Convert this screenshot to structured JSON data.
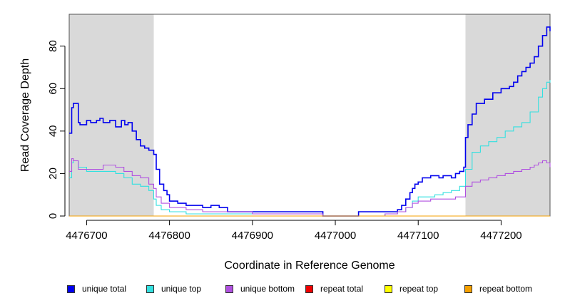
{
  "chart_data": {
    "type": "line",
    "title": "",
    "xlabel": "Coordinate in Reference Genome",
    "ylabel": "Read Coverage Depth",
    "xlim": [
      4476679,
      4477259
    ],
    "ylim": [
      0,
      95
    ],
    "x_ticks": [
      4476700,
      4476800,
      4476900,
      4477000,
      4477100,
      4477200
    ],
    "x_tick_labels": [
      "4476700",
      "4476800",
      "4476900",
      "4477000",
      "4477100",
      "4477200"
    ],
    "y_ticks": [
      0,
      20,
      40,
      60,
      80
    ],
    "y_tick_labels": [
      "0",
      "20",
      "40",
      "60",
      "80"
    ],
    "shaded_regions": [
      [
        4476679,
        4476781
      ],
      [
        4477157,
        4477259
      ]
    ],
    "grid": false,
    "legend_position": "bottom",
    "series": [
      {
        "name": "unique total",
        "color": "#0000ee",
        "x": [
          4476679,
          4476682,
          4476684,
          4476690,
          4476692,
          4476700,
          4476705,
          4476712,
          4476716,
          4476720,
          4476728,
          4476735,
          4476742,
          4476746,
          4476750,
          4476755,
          4476760,
          4476765,
          4476770,
          4476775,
          4476781,
          4476784,
          4476788,
          4476793,
          4476797,
          4476800,
          4476810,
          4476820,
          4476830,
          4476840,
          4476850,
          4476860,
          4476870,
          4476880,
          4476900,
          4476940,
          4476980,
          4476985,
          4477010,
          4477028,
          4477040,
          4477060,
          4477075,
          4477080,
          4477085,
          4477090,
          4477093,
          4477096,
          4477100,
          4477105,
          4477115,
          4477125,
          4477130,
          4477140,
          4477145,
          4477150,
          4477155,
          4477157,
          4477160,
          4477165,
          4477170,
          4477180,
          4477190,
          4477200,
          4477210,
          4477215,
          4477220,
          4477225,
          4477230,
          4477235,
          4477240,
          4477245,
          4477250,
          4477255,
          4477259
        ],
        "y": [
          39,
          51,
          53,
          44,
          43,
          45,
          44,
          45,
          46,
          44,
          45,
          42,
          45,
          43,
          44,
          40,
          36,
          33,
          32,
          31,
          29,
          22,
          15,
          12,
          10,
          7,
          6,
          5,
          5,
          4,
          5,
          4,
          2,
          2,
          2,
          2,
          2,
          0,
          0,
          2,
          2,
          2,
          3,
          5,
          8,
          11,
          13,
          15,
          16,
          18,
          19,
          18,
          19,
          18,
          20,
          21,
          23,
          37,
          43,
          48,
          53,
          55,
          58,
          60,
          61,
          63,
          66,
          68,
          70,
          72,
          75,
          80,
          85,
          89,
          87
        ]
      },
      {
        "name": "unique top",
        "color": "#33e0e0",
        "x": [
          4476679,
          4476682,
          4476684,
          4476690,
          4476700,
          4476720,
          4476735,
          4476745,
          4476755,
          4476765,
          4476775,
          4476781,
          4476784,
          4476790,
          4476800,
          4476820,
          4476840,
          4476860,
          4476880,
          4476940,
          4476985,
          4477028,
          4477060,
          4477075,
          4477085,
          4477093,
          4477100,
          4477110,
          4477120,
          4477130,
          4477140,
          4477150,
          4477157,
          4477165,
          4477175,
          4477185,
          4477195,
          4477205,
          4477215,
          4477225,
          4477235,
          4477245,
          4477250,
          4477255,
          4477259
        ],
        "y": [
          18,
          25,
          26,
          23,
          21,
          21,
          20,
          18,
          15,
          14,
          12,
          8,
          5,
          3,
          2,
          1,
          1,
          1,
          1,
          1,
          0,
          0,
          1,
          2,
          4,
          7,
          9,
          9,
          10,
          11,
          12,
          14,
          22,
          30,
          33,
          35,
          37,
          40,
          42,
          44,
          49,
          56,
          60,
          63,
          64
        ]
      },
      {
        "name": "unique bottom",
        "color": "#b050e0",
        "x": [
          4476679,
          4476682,
          4476684,
          4476690,
          4476700,
          4476720,
          4476735,
          4476745,
          4476755,
          4476765,
          4476775,
          4476781,
          4476784,
          4476790,
          4476800,
          4476820,
          4476840,
          4476860,
          4476900,
          4476985,
          4477028,
          4477060,
          4477075,
          4477085,
          4477093,
          4477100,
          4477115,
          4477130,
          4477145,
          4477157,
          4477165,
          4477175,
          4477185,
          4477195,
          4477205,
          4477215,
          4477225,
          4477235,
          4477240,
          4477245,
          4477250,
          4477255,
          4477259
        ],
        "y": [
          21,
          27,
          26,
          22,
          22,
          24,
          23,
          21,
          19,
          18,
          15,
          13,
          9,
          6,
          4,
          3,
          2,
          2,
          1,
          0,
          0,
          1,
          2,
          4,
          6,
          7,
          8,
          8,
          9,
          14,
          16,
          17,
          18,
          19,
          20,
          21,
          22,
          23,
          24,
          25,
          26,
          25,
          23
        ]
      },
      {
        "name": "repeat total",
        "color": "#ee0000",
        "x": [
          4476679,
          4477259
        ],
        "y": [
          0,
          0
        ]
      },
      {
        "name": "repeat top",
        "color": "#ffff00",
        "x": [
          4476679,
          4477259
        ],
        "y": [
          0,
          0
        ]
      },
      {
        "name": "repeat bottom",
        "color": "#f5a000",
        "x": [
          4476679,
          4477259
        ],
        "y": [
          0,
          0
        ]
      }
    ]
  }
}
